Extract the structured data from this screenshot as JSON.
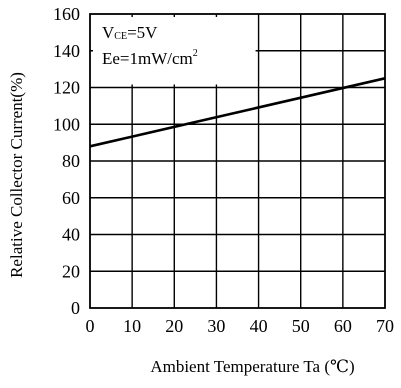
{
  "chart_data": {
    "type": "line",
    "xlabel": "Ambient Temperature Ta (℃)",
    "ylabel": "Relative Collector Current(%)",
    "xlim": [
      0,
      70
    ],
    "ylim": [
      0,
      160
    ],
    "x_ticks": [
      0,
      10,
      20,
      30,
      40,
      50,
      60,
      70
    ],
    "y_ticks": [
      0,
      20,
      40,
      60,
      80,
      100,
      120,
      140,
      160
    ],
    "grid": true,
    "annotations": {
      "line1": {
        "main": "V",
        "sub": "CE",
        "rest": "=5V"
      },
      "line2": {
        "main": "Ee=1mW/cm",
        "sup": "2"
      }
    },
    "series": [
      {
        "x": [
          0,
          70
        ],
        "y": [
          88,
          125
        ]
      }
    ]
  }
}
